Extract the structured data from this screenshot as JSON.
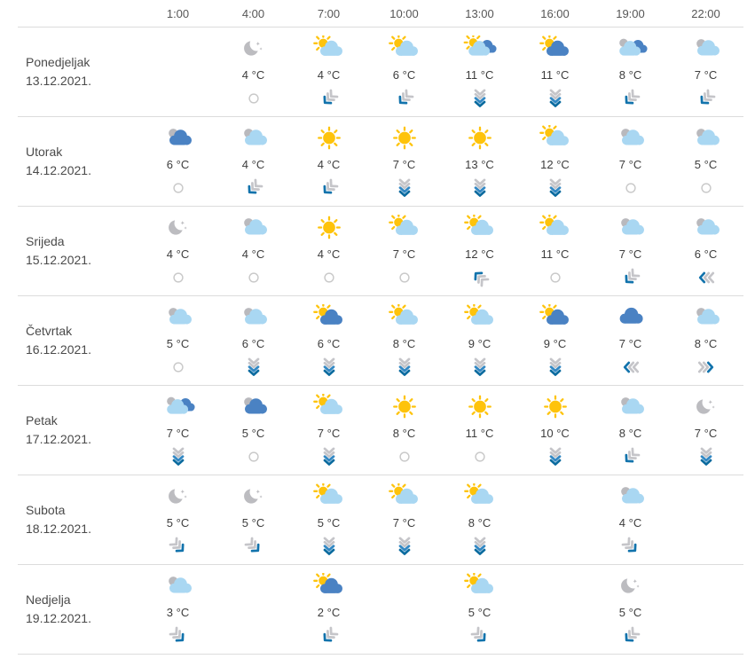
{
  "header": {
    "times": [
      "1:00",
      "4:00",
      "7:00",
      "10:00",
      "13:00",
      "16:00",
      "19:00",
      "22:00"
    ]
  },
  "colors": {
    "sun": "#fec30b",
    "cloud_light": "#a9d7f2",
    "cloud_dark": "#4a82c3",
    "cloud_gray": "#b9b9bd",
    "moon_gray": "#bcbcc0",
    "wind_gray": "#c5c5c9",
    "wind_blue": "#1273ac",
    "wind_blue_mid": "#3187c3",
    "wind_blue_dark": "#0b6b9f",
    "calm_gray": "#c9c9c9"
  },
  "days": [
    {
      "name": "Ponedjeljak",
      "date": "13.12.2021.",
      "cells": [
        {
          "time": "1:00",
          "empty": true
        },
        {
          "time": "4:00",
          "icon": "night-clear",
          "temp": "4 °C",
          "wind": "calm"
        },
        {
          "time": "7:00",
          "icon": "partly-sunny",
          "temp": "4 °C",
          "wind": "sw"
        },
        {
          "time": "10:00",
          "icon": "partly-sunny",
          "temp": "6 °C",
          "wind": "sw"
        },
        {
          "time": "13:00",
          "icon": "sun-clouds-mix",
          "temp": "11 °C",
          "wind": "s"
        },
        {
          "time": "16:00",
          "icon": "sun-dark-cloud",
          "temp": "11 °C",
          "wind": "s"
        },
        {
          "time": "19:00",
          "icon": "clouds-mix",
          "temp": "8 °C",
          "wind": "sw"
        },
        {
          "time": "22:00",
          "icon": "cloudy",
          "temp": "7 °C",
          "wind": "sw"
        }
      ]
    },
    {
      "name": "Utorak",
      "date": "14.12.2021.",
      "cells": [
        {
          "time": "1:00",
          "icon": "dark-cloudy",
          "temp": "6 °C",
          "wind": "calm"
        },
        {
          "time": "4:00",
          "icon": "cloudy",
          "temp": "4 °C",
          "wind": "sw"
        },
        {
          "time": "7:00",
          "icon": "sunny",
          "temp": "4 °C",
          "wind": "sw"
        },
        {
          "time": "10:00",
          "icon": "sunny",
          "temp": "7 °C",
          "wind": "s"
        },
        {
          "time": "13:00",
          "icon": "sunny",
          "temp": "13 °C",
          "wind": "s"
        },
        {
          "time": "16:00",
          "icon": "partly-sunny",
          "temp": "12 °C",
          "wind": "s"
        },
        {
          "time": "19:00",
          "icon": "cloudy",
          "temp": "7 °C",
          "wind": "calm"
        },
        {
          "time": "22:00",
          "icon": "cloudy",
          "temp": "5 °C",
          "wind": "calm"
        }
      ]
    },
    {
      "name": "Srijeda",
      "date": "15.12.2021.",
      "cells": [
        {
          "time": "1:00",
          "icon": "night-clear",
          "temp": "4 °C",
          "wind": "calm"
        },
        {
          "time": "4:00",
          "icon": "cloudy",
          "temp": "4 °C",
          "wind": "calm"
        },
        {
          "time": "7:00",
          "icon": "sunny",
          "temp": "4 °C",
          "wind": "calm"
        },
        {
          "time": "10:00",
          "icon": "partly-sunny",
          "temp": "7 °C",
          "wind": "calm"
        },
        {
          "time": "13:00",
          "icon": "partly-sunny",
          "temp": "12 °C",
          "wind": "nw"
        },
        {
          "time": "16:00",
          "icon": "partly-sunny",
          "temp": "11 °C",
          "wind": "calm"
        },
        {
          "time": "19:00",
          "icon": "cloudy",
          "temp": "7 °C",
          "wind": "sw"
        },
        {
          "time": "22:00",
          "icon": "cloudy",
          "temp": "6 °C",
          "wind": "w"
        }
      ]
    },
    {
      "name": "Četvrtak",
      "date": "16.12.2021.",
      "cells": [
        {
          "time": "1:00",
          "icon": "cloudy",
          "temp": "5 °C",
          "wind": "calm"
        },
        {
          "time": "4:00",
          "icon": "cloudy",
          "temp": "6 °C",
          "wind": "s"
        },
        {
          "time": "7:00",
          "icon": "sun-dark-cloud",
          "temp": "6 °C",
          "wind": "s"
        },
        {
          "time": "10:00",
          "icon": "partly-sunny",
          "temp": "8 °C",
          "wind": "s"
        },
        {
          "time": "13:00",
          "icon": "partly-sunny",
          "temp": "9 °C",
          "wind": "s"
        },
        {
          "time": "16:00",
          "icon": "sun-dark-cloud",
          "temp": "9 °C",
          "wind": "s"
        },
        {
          "time": "19:00",
          "icon": "dark-cloud",
          "temp": "7 °C",
          "wind": "w"
        },
        {
          "time": "22:00",
          "icon": "cloudy",
          "temp": "8 °C",
          "wind": "e"
        }
      ]
    },
    {
      "name": "Petak",
      "date": "17.12.2021.",
      "cells": [
        {
          "time": "1:00",
          "icon": "clouds-mix",
          "temp": "7 °C",
          "wind": "s"
        },
        {
          "time": "4:00",
          "icon": "dark-cloudy",
          "temp": "5 °C",
          "wind": "calm"
        },
        {
          "time": "7:00",
          "icon": "partly-sunny",
          "temp": "7 °C",
          "wind": "s"
        },
        {
          "time": "10:00",
          "icon": "sunny",
          "temp": "8 °C",
          "wind": "calm"
        },
        {
          "time": "13:00",
          "icon": "sunny",
          "temp": "11 °C",
          "wind": "calm"
        },
        {
          "time": "16:00",
          "icon": "sunny",
          "temp": "10 °C",
          "wind": "s"
        },
        {
          "time": "19:00",
          "icon": "cloudy",
          "temp": "8 °C",
          "wind": "sw"
        },
        {
          "time": "22:00",
          "icon": "night-clear",
          "temp": "7 °C",
          "wind": "s"
        }
      ]
    },
    {
      "name": "Subota",
      "date": "18.12.2021.",
      "cells": [
        {
          "time": "1:00",
          "icon": "night-clear",
          "temp": "5 °C",
          "wind": "se"
        },
        {
          "time": "4:00",
          "icon": "night-clear",
          "temp": "5 °C",
          "wind": "se"
        },
        {
          "time": "7:00",
          "icon": "partly-sunny",
          "temp": "5 °C",
          "wind": "s"
        },
        {
          "time": "10:00",
          "icon": "partly-sunny",
          "temp": "7 °C",
          "wind": "s"
        },
        {
          "time": "13:00",
          "icon": "partly-sunny",
          "temp": "8 °C",
          "wind": "s"
        },
        {
          "time": "16:00",
          "empty": true
        },
        {
          "time": "19:00",
          "icon": "cloudy",
          "temp": "4 °C",
          "wind": "se"
        },
        {
          "time": "22:00",
          "empty": true
        }
      ]
    },
    {
      "name": "Nedjelja",
      "date": "19.12.2021.",
      "cells": [
        {
          "time": "1:00",
          "icon": "cloudy",
          "temp": "3 °C",
          "wind": "se"
        },
        {
          "time": "4:00",
          "empty": true
        },
        {
          "time": "7:00",
          "icon": "sun-dark-cloud",
          "temp": "2 °C",
          "wind": "sw"
        },
        {
          "time": "10:00",
          "empty": true
        },
        {
          "time": "13:00",
          "icon": "partly-sunny",
          "temp": "5 °C",
          "wind": "se"
        },
        {
          "time": "16:00",
          "empty": true
        },
        {
          "time": "19:00",
          "icon": "night-clear",
          "temp": "5 °C",
          "wind": "sw"
        },
        {
          "time": "22:00",
          "empty": true
        }
      ]
    }
  ]
}
